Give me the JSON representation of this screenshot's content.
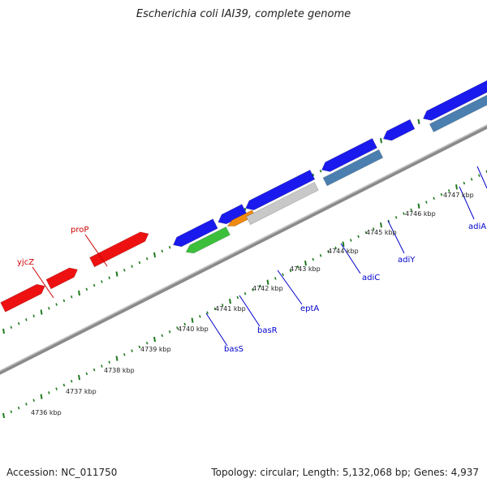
{
  "header": {
    "title": "Escherichia coli IAI39, complete genome"
  },
  "footer": {
    "accession": "Accession: NC_011750",
    "summary": "Topology: circular; Length: 5,132,068 bp; Genes: 4,937"
  },
  "colors": {
    "forward_gene": "#ee1111",
    "reverse_gene": "#1a1aee",
    "steelblue_gene": "#4a7fb0",
    "green_gene": "#3cc03c",
    "orange_gene": "#f08a10",
    "gray_gene": "#c8c8c8",
    "backbone": "#8a8a8a",
    "tick": "#1f7a1f",
    "label_forward": "#cc0000",
    "label_reverse": "#0000cc"
  },
  "scale_labels": [
    "4736 kbp",
    "4737 kbp",
    "4738 kbp",
    "4739 kbp",
    "4740 kbp",
    "4741 kbp",
    "4742 kbp",
    "4743 kbp",
    "4744 kbp",
    "4745 kbp",
    "4746 kbp",
    "4747 kbp"
  ],
  "gene_labels": [
    {
      "name": "yjcZ",
      "strand": "forward"
    },
    {
      "name": "proP",
      "strand": "forward"
    },
    {
      "name": "basS",
      "strand": "reverse"
    },
    {
      "name": "basR",
      "strand": "reverse"
    },
    {
      "name": "eptA",
      "strand": "reverse"
    },
    {
      "name": "adiC",
      "strand": "reverse"
    },
    {
      "name": "adiY",
      "strand": "reverse"
    },
    {
      "name": "adiA",
      "strand": "reverse"
    }
  ]
}
